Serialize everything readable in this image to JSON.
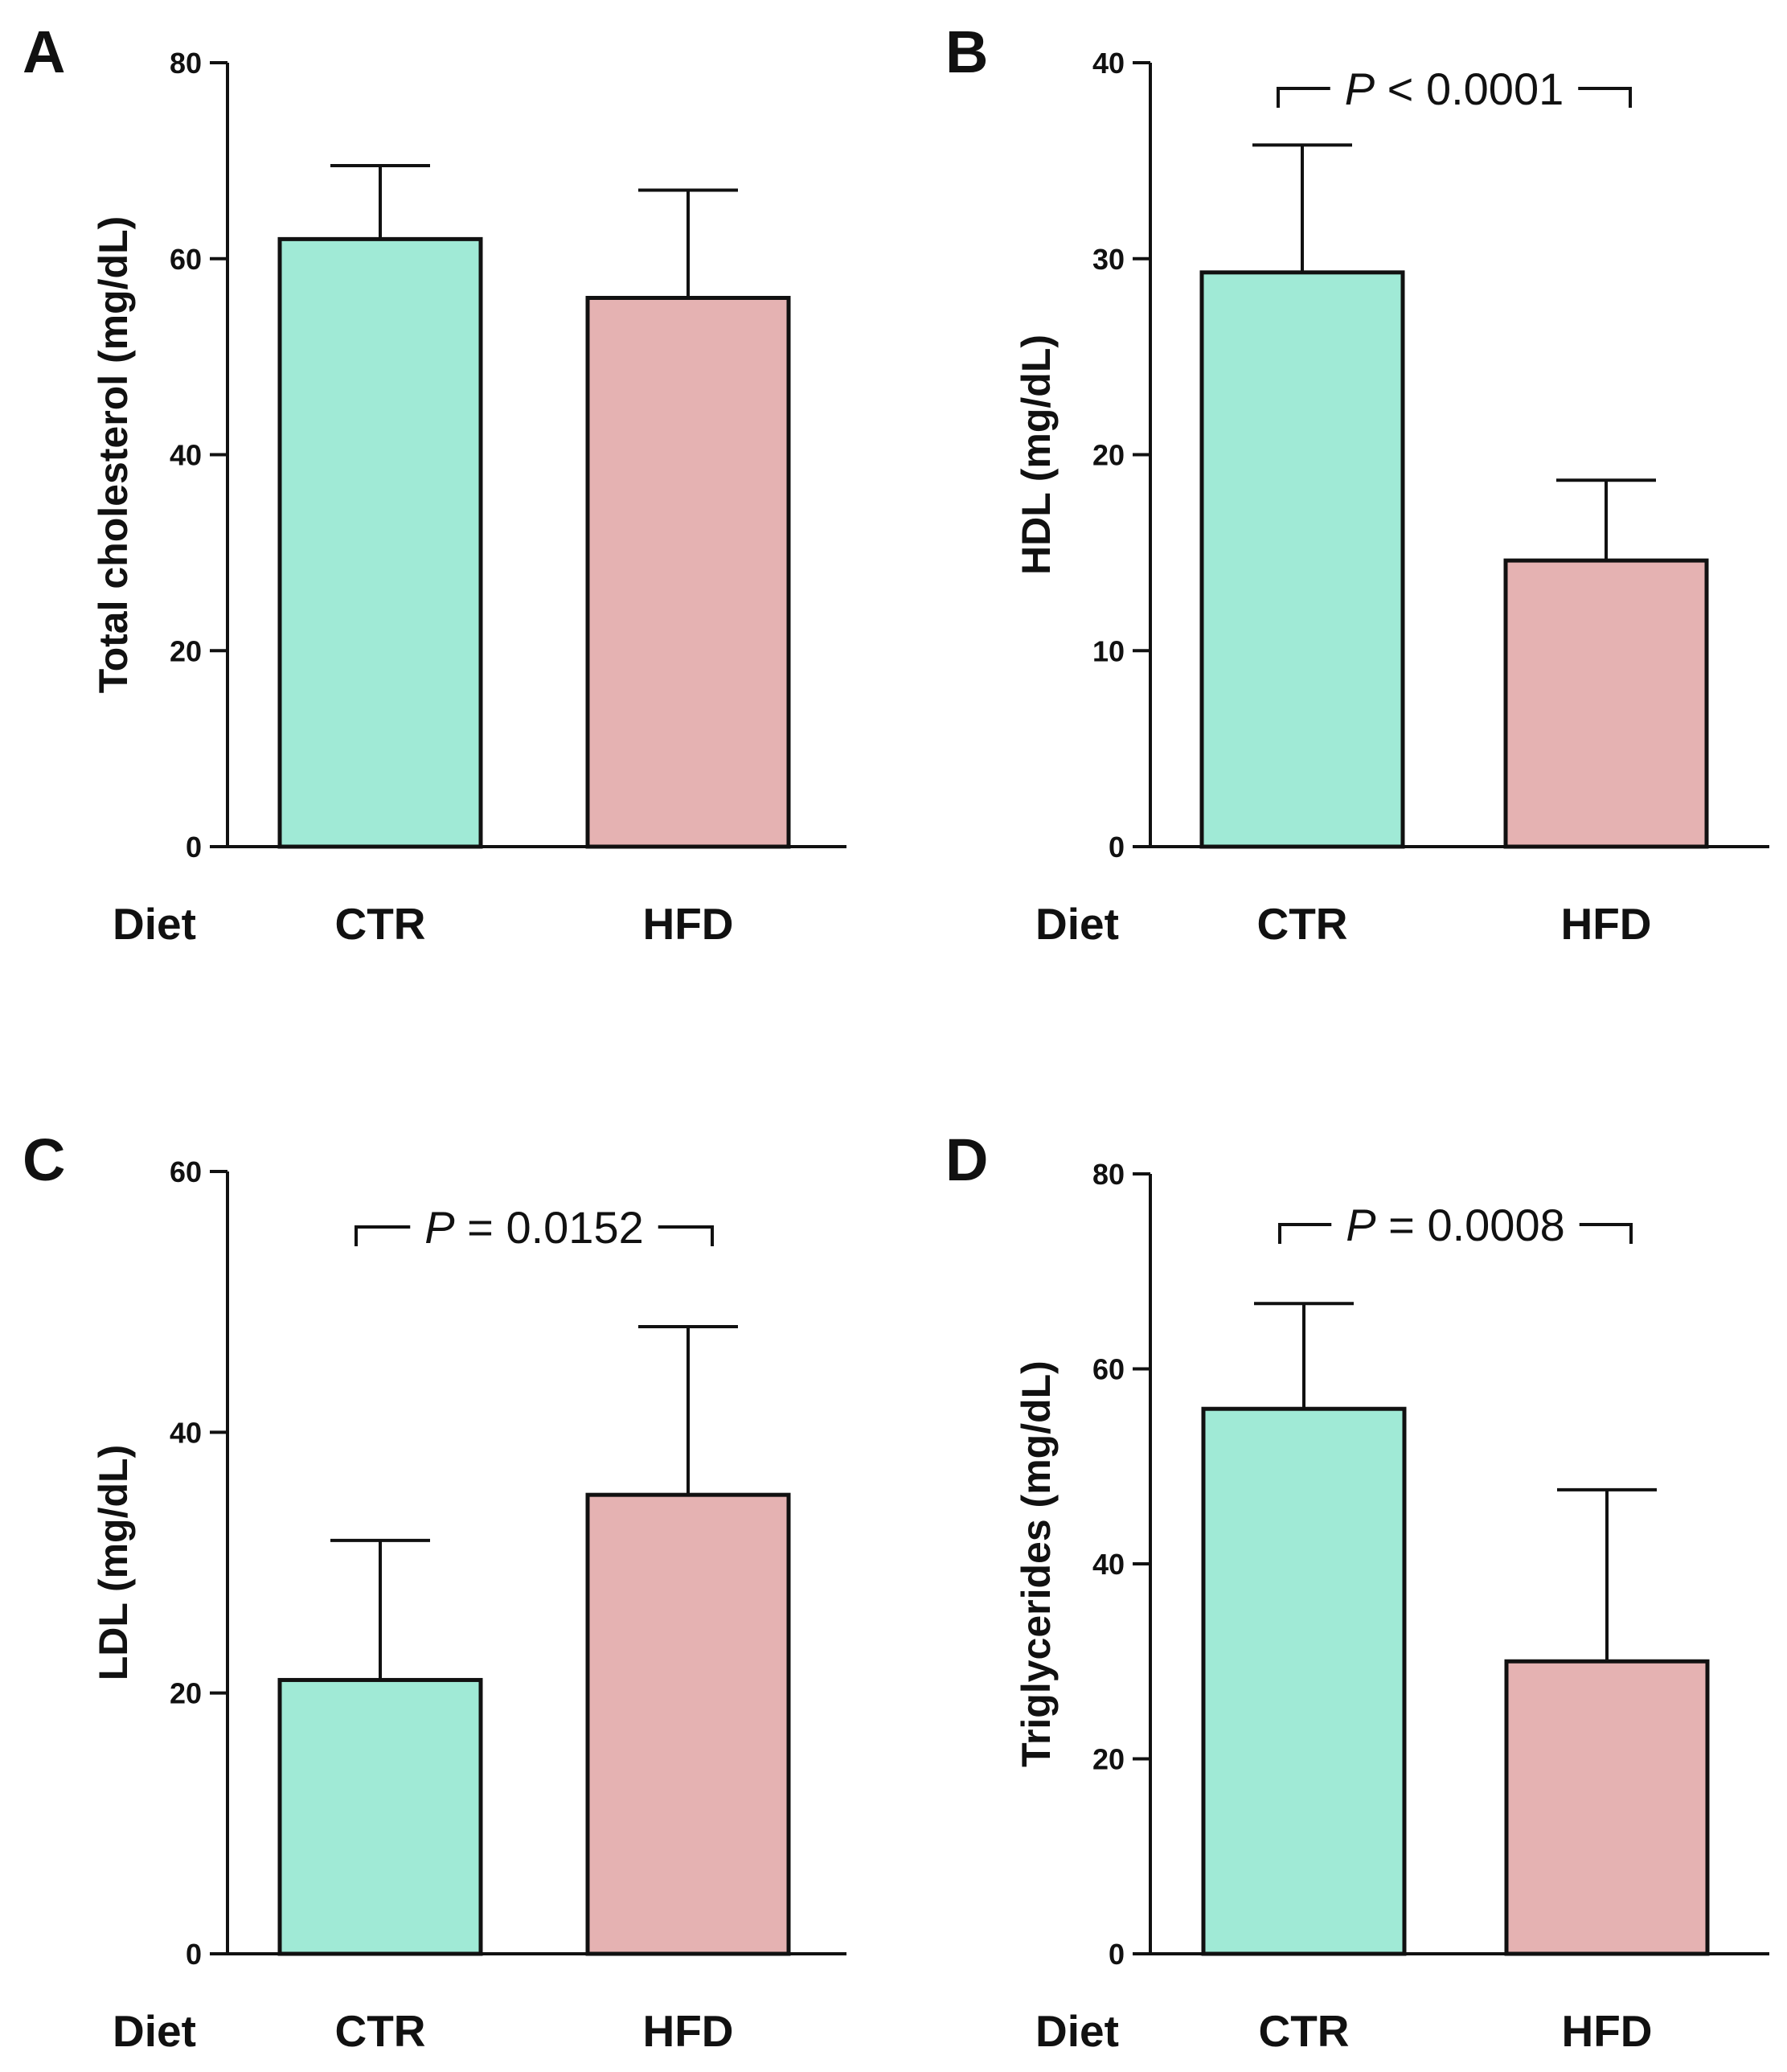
{
  "figure": {
    "group_variable": "Diet",
    "colors": {
      "CTR": "#a0ead6",
      "HFD": "#e5b2b2",
      "axis": "#111111"
    }
  },
  "chart_data": [
    {
      "panel": "A",
      "type": "bar",
      "categories": [
        "CTR",
        "HFD"
      ],
      "values": [
        62,
        56
      ],
      "errors": [
        7.5,
        11
      ],
      "ylabel": "Total cholesterol (mg/dL)",
      "ylim": [
        0,
        80
      ],
      "yticks": [
        0,
        20,
        40,
        60,
        80
      ],
      "pvalue": null
    },
    {
      "panel": "B",
      "type": "bar",
      "categories": [
        "CTR",
        "HFD"
      ],
      "values": [
        29.3,
        14.6
      ],
      "errors": [
        6.5,
        4.1
      ],
      "ylabel": "HDL (mg/dL)",
      "ylim": [
        0,
        40
      ],
      "yticks": [
        0,
        10,
        20,
        30,
        40
      ],
      "pvalue": {
        "p": "P",
        "rest": " < 0.0001"
      }
    },
    {
      "panel": "C",
      "type": "bar",
      "categories": [
        "CTR",
        "HFD"
      ],
      "values": [
        21,
        35.2
      ],
      "errors": [
        10.7,
        12.9
      ],
      "ylabel": "LDL (mg/dL)",
      "ylim": [
        0,
        60
      ],
      "yticks": [
        0,
        20,
        40,
        60
      ],
      "pvalue": {
        "p": "P",
        "rest": " = 0.0152"
      }
    },
    {
      "panel": "D",
      "type": "bar",
      "categories": [
        "CTR",
        "HFD"
      ],
      "values": [
        55.9,
        30
      ],
      "errors": [
        10.8,
        17.6
      ],
      "ylabel": "Triglycerides (mg/dL)",
      "ylim": [
        0,
        80
      ],
      "yticks": [
        0,
        20,
        40,
        60,
        80
      ],
      "pvalue": {
        "p": "P",
        "rest": " = 0.0008"
      }
    }
  ]
}
